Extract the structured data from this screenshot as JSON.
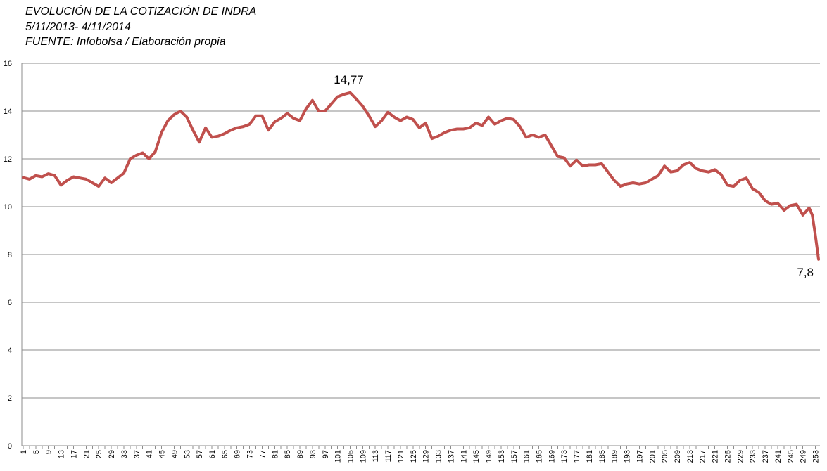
{
  "header": {
    "title": "EVOLUCIÓN DE LA COTIZACIÓN DE INDRA",
    "subtitle": "5/11/2013- 4/11/2014",
    "source": "FUENTE: Infobolsa / Elaboración propia"
  },
  "chart_data": {
    "type": "line",
    "title": "EVOLUCIÓN DE LA COTIZACIÓN DE INDRA",
    "xlabel": "",
    "ylabel": "",
    "ylim": [
      0,
      16
    ],
    "yticks": [
      0,
      2,
      4,
      6,
      8,
      10,
      12,
      14,
      16
    ],
    "xticks": [
      1,
      5,
      9,
      13,
      17,
      21,
      25,
      29,
      33,
      37,
      41,
      45,
      49,
      53,
      57,
      61,
      65,
      69,
      73,
      77,
      81,
      85,
      89,
      93,
      97,
      101,
      105,
      109,
      113,
      117,
      121,
      125,
      129,
      133,
      137,
      141,
      145,
      149,
      153,
      157,
      161,
      165,
      169,
      173,
      177,
      181,
      185,
      189,
      193,
      197,
      201,
      205,
      209,
      213,
      217,
      221,
      225,
      229,
      233,
      237,
      241,
      245,
      249,
      253
    ],
    "x_count": 254,
    "grid": "horizontal",
    "line_color": "#c0504d",
    "annotations": [
      {
        "text": "14,77",
        "x": 105,
        "y": 14.77
      },
      {
        "text": "7,8",
        "x": 254,
        "y": 7.8
      }
    ],
    "series": [
      {
        "name": "",
        "x": [
          1,
          3,
          5,
          7,
          9,
          11,
          13,
          15,
          17,
          19,
          21,
          23,
          25,
          27,
          29,
          31,
          33,
          35,
          37,
          39,
          41,
          43,
          45,
          47,
          49,
          51,
          53,
          55,
          57,
          59,
          61,
          63,
          65,
          67,
          69,
          71,
          73,
          75,
          77,
          79,
          81,
          83,
          85,
          87,
          89,
          91,
          93,
          95,
          97,
          99,
          101,
          103,
          105,
          107,
          109,
          111,
          113,
          115,
          117,
          119,
          121,
          123,
          125,
          127,
          129,
          131,
          133,
          135,
          137,
          139,
          141,
          143,
          145,
          147,
          149,
          151,
          153,
          155,
          157,
          159,
          161,
          163,
          165,
          167,
          169,
          171,
          173,
          175,
          177,
          179,
          181,
          183,
          185,
          187,
          189,
          191,
          193,
          195,
          197,
          199,
          201,
          203,
          205,
          207,
          209,
          211,
          213,
          215,
          217,
          219,
          221,
          223,
          225,
          227,
          229,
          231,
          233,
          235,
          237,
          239,
          241,
          243,
          245,
          247,
          249,
          251,
          252,
          253,
          254
        ],
        "values": [
          11.22,
          11.15,
          11.3,
          11.25,
          11.38,
          11.3,
          10.9,
          11.1,
          11.25,
          11.2,
          11.15,
          11.0,
          10.85,
          11.2,
          11.0,
          11.2,
          11.4,
          12.0,
          12.15,
          12.25,
          12.0,
          12.3,
          13.1,
          13.6,
          13.85,
          14.0,
          13.75,
          13.2,
          12.7,
          13.3,
          12.9,
          12.95,
          13.05,
          13.2,
          13.3,
          13.35,
          13.45,
          13.8,
          13.8,
          13.2,
          13.55,
          13.7,
          13.9,
          13.7,
          13.6,
          14.1,
          14.45,
          14.0,
          14.0,
          14.3,
          14.6,
          14.7,
          14.77,
          14.5,
          14.2,
          13.8,
          13.35,
          13.6,
          13.95,
          13.75,
          13.6,
          13.75,
          13.65,
          13.3,
          13.5,
          12.85,
          12.95,
          13.1,
          13.2,
          13.25,
          13.25,
          13.3,
          13.5,
          13.4,
          13.75,
          13.45,
          13.6,
          13.7,
          13.65,
          13.35,
          12.9,
          13.0,
          12.9,
          13.0,
          12.55,
          12.1,
          12.05,
          11.7,
          11.95,
          11.7,
          11.75,
          11.75,
          11.8,
          11.45,
          11.1,
          10.85,
          10.95,
          11.0,
          10.95,
          11.0,
          11.15,
          11.3,
          11.7,
          11.45,
          11.5,
          11.75,
          11.85,
          11.6,
          11.5,
          11.45,
          11.55,
          11.35,
          10.9,
          10.85,
          11.1,
          11.2,
          10.75,
          10.6,
          10.25,
          10.1,
          10.15,
          9.85,
          10.05,
          10.1,
          9.65,
          9.95,
          9.65,
          8.8,
          7.8
        ]
      }
    ]
  }
}
